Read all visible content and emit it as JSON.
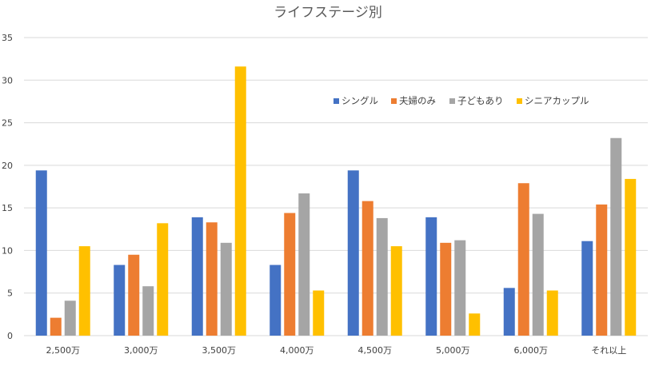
{
  "chart_data": {
    "type": "bar",
    "title": "ライフステージ別",
    "xlabel": "",
    "ylabel": "",
    "categories": [
      "2,500万",
      "3,000万",
      "3,500万",
      "4,000万",
      "4,500万",
      "5,000万",
      "6,000万",
      "それ以上"
    ],
    "series": [
      {
        "name": "シングル",
        "color": "#4472C4",
        "values": [
          19.4,
          8.3,
          13.9,
          8.3,
          19.4,
          13.9,
          5.6,
          11.1
        ]
      },
      {
        "name": "夫婦のみ",
        "color": "#ED7D31",
        "values": [
          2.1,
          9.5,
          13.3,
          14.4,
          15.8,
          10.9,
          17.9,
          15.4
        ]
      },
      {
        "name": "子どもあり",
        "color": "#A5A5A5",
        "values": [
          4.1,
          5.8,
          10.9,
          16.7,
          13.8,
          11.2,
          14.3,
          23.2
        ]
      },
      {
        "name": "シニアカップル",
        "color": "#FFC000",
        "values": [
          10.5,
          13.2,
          31.6,
          5.3,
          10.5,
          2.6,
          5.3,
          18.4
        ]
      }
    ],
    "ylim": [
      0,
      35
    ],
    "yticks": [
      "0",
      "5",
      "10",
      "15",
      "20",
      "25",
      "30",
      "35"
    ],
    "grid": true,
    "legend_position": "upper-right inside plot"
  }
}
